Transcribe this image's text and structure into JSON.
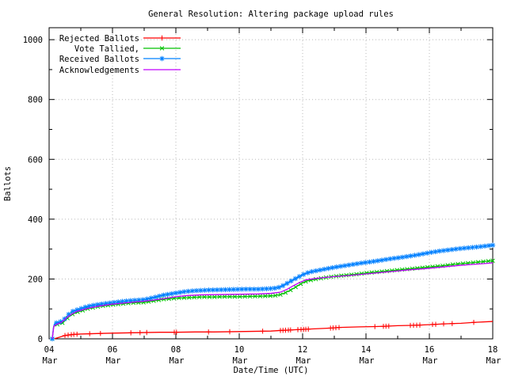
{
  "window": {
    "title": "General Resolution: Altering package upload rules"
  },
  "chart_data": {
    "type": "line",
    "title": "General Resolution: Altering package upload rules",
    "xlabel": "Date/Time (UTC)",
    "ylabel": "Ballots",
    "xlim": [
      4,
      18
    ],
    "ylim": [
      0,
      1040
    ],
    "grid": true,
    "legend_position": "top-left",
    "axis_color": "#000000",
    "grid_color": "#b8b8b8",
    "x_major_ticks": [
      {
        "day": 4,
        "label": "04",
        "month": "Mar"
      },
      {
        "day": 6,
        "label": "06",
        "month": "Mar"
      },
      {
        "day": 8,
        "label": "08",
        "month": "Mar"
      },
      {
        "day": 10,
        "label": "10",
        "month": "Mar"
      },
      {
        "day": 12,
        "label": "12",
        "month": "Mar"
      },
      {
        "day": 14,
        "label": "14",
        "month": "Mar"
      },
      {
        "day": 16,
        "label": "16",
        "month": "Mar"
      }
    ],
    "x_last_tick": {
      "day": 18,
      "label": "18",
      "month": "Mar"
    },
    "x_minor_ticks": [
      5,
      7,
      9,
      11,
      13,
      15,
      17
    ],
    "y_major_ticks": [
      {
        "value": 0,
        "label": "0"
      },
      {
        "value": 200,
        "label": "200"
      },
      {
        "value": 400,
        "label": "400"
      },
      {
        "value": 600,
        "label": "600"
      },
      {
        "value": 800,
        "label": "800"
      },
      {
        "value": 1000,
        "label": "1000"
      }
    ],
    "y_minor_ticks": [
      100,
      300,
      500,
      700,
      900
    ],
    "series": [
      {
        "name": "Rejected Ballots",
        "color": "#ff0000",
        "marker": "plus",
        "marker_mode": "explicit",
        "marker_days": [
          4.5,
          4.6,
          4.7,
          4.78,
          4.88,
          5.28,
          5.62,
          6.58,
          6.87,
          7.08,
          7.95,
          8.02,
          9.03,
          9.7,
          10.74,
          11.3,
          11.38,
          11.46,
          11.55,
          11.62,
          11.85,
          11.95,
          12.03,
          12.1,
          12.18,
          12.88,
          12.96,
          13.05,
          13.15,
          14.28,
          14.55,
          14.63,
          14.72,
          15.4,
          15.5,
          15.6,
          15.7,
          16.1,
          16.2,
          16.45,
          16.72,
          17.4
        ],
        "points": [
          [
            4.15,
            0
          ],
          [
            4.25,
            3
          ],
          [
            4.4,
            8
          ],
          [
            4.5,
            11
          ],
          [
            4.62,
            13
          ],
          [
            4.8,
            15
          ],
          [
            5.0,
            16
          ],
          [
            5.3,
            17
          ],
          [
            5.62,
            18
          ],
          [
            6.0,
            19
          ],
          [
            6.5,
            20
          ],
          [
            7.0,
            21
          ],
          [
            7.5,
            22
          ],
          [
            8.0,
            22
          ],
          [
            8.6,
            23
          ],
          [
            9.2,
            23
          ],
          [
            9.8,
            24
          ],
          [
            10.4,
            25
          ],
          [
            11.0,
            26
          ],
          [
            11.3,
            28
          ],
          [
            11.5,
            29
          ],
          [
            11.9,
            31
          ],
          [
            12.1,
            32
          ],
          [
            12.5,
            34
          ],
          [
            12.9,
            36
          ],
          [
            13.15,
            38
          ],
          [
            13.8,
            40
          ],
          [
            14.3,
            41
          ],
          [
            14.6,
            42
          ],
          [
            15.0,
            44
          ],
          [
            15.45,
            45
          ],
          [
            15.7,
            46
          ],
          [
            16.1,
            48
          ],
          [
            16.45,
            50
          ],
          [
            16.7,
            51
          ],
          [
            17.0,
            52
          ],
          [
            17.4,
            55
          ],
          [
            18.0,
            58
          ]
        ]
      },
      {
        "name": "Vote Tallied,",
        "color": "#00c000",
        "marker": "cross",
        "marker_mode": "dense",
        "marker_step": 0.16,
        "points": [
          [
            4.1,
            0
          ],
          [
            4.14,
            40
          ],
          [
            4.2,
            46
          ],
          [
            4.3,
            50
          ],
          [
            4.44,
            54
          ],
          [
            4.55,
            66
          ],
          [
            4.65,
            76
          ],
          [
            4.75,
            83
          ],
          [
            4.88,
            89
          ],
          [
            5.0,
            93
          ],
          [
            5.2,
            100
          ],
          [
            5.45,
            106
          ],
          [
            5.7,
            110
          ],
          [
            6.0,
            114
          ],
          [
            6.3,
            117
          ],
          [
            6.6,
            120
          ],
          [
            7.0,
            122
          ],
          [
            7.3,
            127
          ],
          [
            7.6,
            132
          ],
          [
            8.0,
            136
          ],
          [
            8.4,
            138
          ],
          [
            8.8,
            140
          ],
          [
            9.2,
            140
          ],
          [
            9.6,
            141
          ],
          [
            10.0,
            141
          ],
          [
            10.4,
            142
          ],
          [
            10.8,
            143
          ],
          [
            11.1,
            144
          ],
          [
            11.3,
            148
          ],
          [
            11.45,
            154
          ],
          [
            11.6,
            162
          ],
          [
            11.75,
            171
          ],
          [
            11.9,
            181
          ],
          [
            12.05,
            190
          ],
          [
            12.2,
            195
          ],
          [
            12.5,
            201
          ],
          [
            12.8,
            206
          ],
          [
            13.1,
            210
          ],
          [
            13.4,
            213
          ],
          [
            13.7,
            216
          ],
          [
            14.0,
            220
          ],
          [
            14.4,
            224
          ],
          [
            14.8,
            228
          ],
          [
            15.2,
            232
          ],
          [
            15.6,
            236
          ],
          [
            16.0,
            240
          ],
          [
            16.4,
            244
          ],
          [
            16.8,
            249
          ],
          [
            17.2,
            253
          ],
          [
            17.6,
            257
          ],
          [
            18.0,
            261
          ]
        ]
      },
      {
        "name": "Received Ballots",
        "color": "#0080ff",
        "marker": "star",
        "marker_mode": "dense",
        "marker_step": 0.13,
        "points": [
          [
            4.1,
            0
          ],
          [
            4.13,
            30
          ],
          [
            4.16,
            48
          ],
          [
            4.22,
            53
          ],
          [
            4.32,
            56
          ],
          [
            4.44,
            60
          ],
          [
            4.55,
            74
          ],
          [
            4.65,
            85
          ],
          [
            4.75,
            92
          ],
          [
            4.88,
            97
          ],
          [
            5.0,
            101
          ],
          [
            5.2,
            108
          ],
          [
            5.45,
            113
          ],
          [
            5.7,
            117
          ],
          [
            6.0,
            121
          ],
          [
            6.3,
            125
          ],
          [
            6.6,
            128
          ],
          [
            7.0,
            131
          ],
          [
            7.3,
            138
          ],
          [
            7.6,
            146
          ],
          [
            8.0,
            153
          ],
          [
            8.3,
            158
          ],
          [
            8.6,
            161
          ],
          [
            9.0,
            163
          ],
          [
            9.4,
            164
          ],
          [
            9.8,
            165
          ],
          [
            10.2,
            166
          ],
          [
            10.6,
            166
          ],
          [
            11.0,
            168
          ],
          [
            11.2,
            170
          ],
          [
            11.35,
            176
          ],
          [
            11.5,
            185
          ],
          [
            11.65,
            194
          ],
          [
            11.8,
            203
          ],
          [
            11.95,
            211
          ],
          [
            12.1,
            219
          ],
          [
            12.3,
            225
          ],
          [
            12.5,
            229
          ],
          [
            12.75,
            234
          ],
          [
            13.0,
            239
          ],
          [
            13.3,
            244
          ],
          [
            13.6,
            249
          ],
          [
            13.9,
            254
          ],
          [
            14.2,
            258
          ],
          [
            14.5,
            263
          ],
          [
            14.8,
            268
          ],
          [
            15.1,
            272
          ],
          [
            15.4,
            277
          ],
          [
            15.7,
            282
          ],
          [
            16.0,
            288
          ],
          [
            16.3,
            293
          ],
          [
            16.6,
            297
          ],
          [
            16.9,
            301
          ],
          [
            17.2,
            304
          ],
          [
            17.5,
            307
          ],
          [
            17.75,
            310
          ],
          [
            18.0,
            313
          ]
        ]
      },
      {
        "name": "Acknowledgements",
        "color": "#c000ff",
        "marker": "none",
        "marker_mode": "none",
        "points": [
          [
            4.1,
            0
          ],
          [
            4.15,
            43
          ],
          [
            4.25,
            49
          ],
          [
            4.4,
            56
          ],
          [
            4.55,
            70
          ],
          [
            4.7,
            82
          ],
          [
            4.88,
            92
          ],
          [
            5.05,
            97
          ],
          [
            5.3,
            104
          ],
          [
            5.6,
            110
          ],
          [
            6.0,
            116
          ],
          [
            6.4,
            120
          ],
          [
            6.8,
            124
          ],
          [
            7.2,
            128
          ],
          [
            7.6,
            134
          ],
          [
            8.0,
            141
          ],
          [
            8.4,
            145
          ],
          [
            8.8,
            147
          ],
          [
            9.4,
            148
          ],
          [
            10.0,
            149
          ],
          [
            10.6,
            150
          ],
          [
            11.0,
            152
          ],
          [
            11.3,
            156
          ],
          [
            11.5,
            165
          ],
          [
            11.7,
            177
          ],
          [
            11.9,
            188
          ],
          [
            12.1,
            197
          ],
          [
            12.35,
            201
          ],
          [
            12.7,
            205
          ],
          [
            13.0,
            208
          ],
          [
            13.4,
            211
          ],
          [
            13.8,
            215
          ],
          [
            14.2,
            219
          ],
          [
            14.6,
            223
          ],
          [
            15.0,
            227
          ],
          [
            15.4,
            231
          ],
          [
            15.8,
            234
          ],
          [
            16.2,
            238
          ],
          [
            16.6,
            242
          ],
          [
            17.0,
            246
          ],
          [
            17.4,
            249
          ],
          [
            17.8,
            252
          ],
          [
            18.0,
            254
          ]
        ]
      }
    ]
  }
}
